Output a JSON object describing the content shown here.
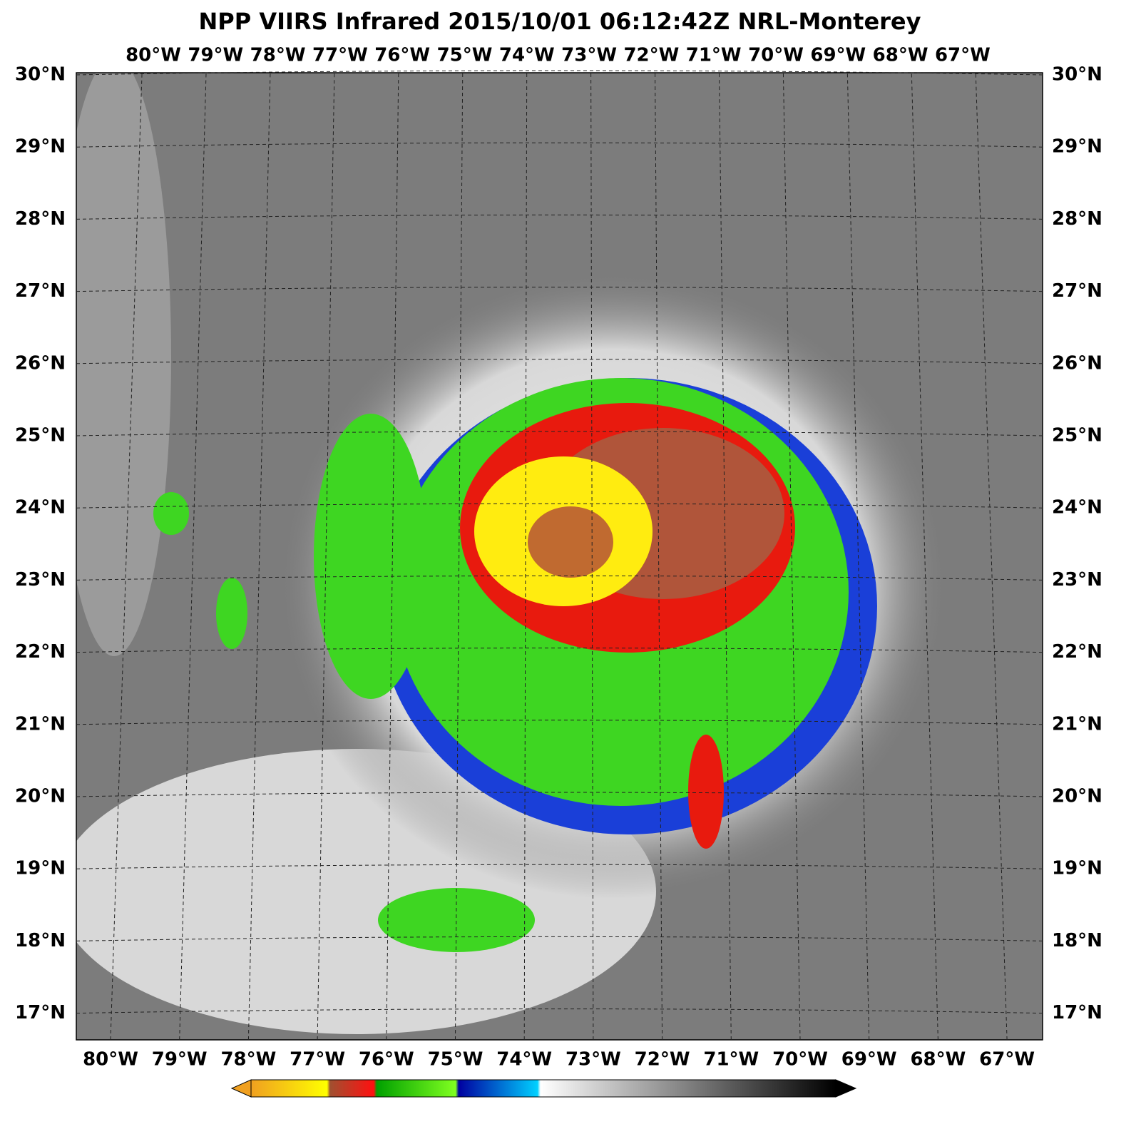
{
  "header": {
    "title": "NPP VIIRS Infrared 2015/10/01 06:12:42Z NRL-Monterey"
  },
  "map": {
    "top_longitude_labels": [
      "80°W",
      "79°W",
      "78°W",
      "77°W",
      "76°W",
      "75°W",
      "74°W",
      "73°W",
      "72°W",
      "71°W",
      "70°W",
      "69°W",
      "68°W",
      "67°W"
    ],
    "bottom_longitude_labels": [
      "80°W",
      "79°W",
      "78°W",
      "77°W",
      "76°W",
      "75°W",
      "74°W",
      "73°W",
      "72°W",
      "71°W",
      "70°W",
      "69°W",
      "68°W",
      "67°W"
    ],
    "left_latitude_labels": [
      "30°N",
      "29°N",
      "28°N",
      "27°N",
      "26°N",
      "25°N",
      "24°N",
      "23°N",
      "22°N",
      "21°N",
      "20°N",
      "19°N",
      "18°N",
      "17°N"
    ],
    "right_latitude_labels": [
      "30°N",
      "29°N",
      "28°N",
      "27°N",
      "26°N",
      "25°N",
      "24°N",
      "23°N",
      "22°N",
      "21°N",
      "20°N",
      "19°N",
      "18°N",
      "17°N"
    ]
  }
}
